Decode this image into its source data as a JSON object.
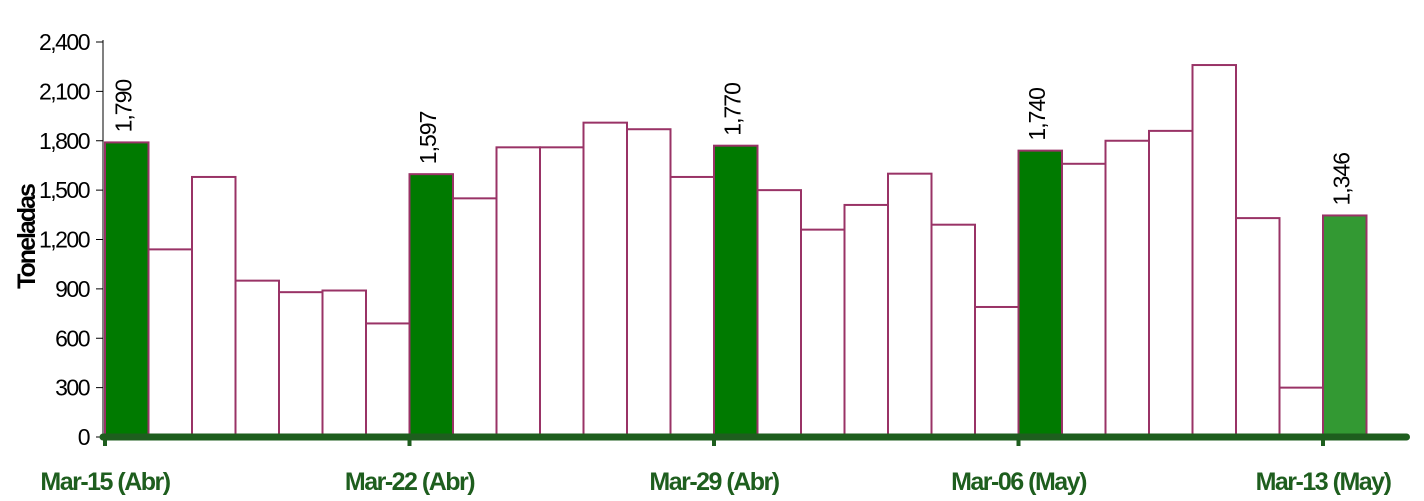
{
  "chart_data": {
    "type": "bar",
    "ylabel": "Toneladas",
    "ylim": [
      0,
      2400
    ],
    "yticks": [
      0,
      300,
      600,
      900,
      1200,
      1500,
      1800,
      2100,
      2400
    ],
    "ytick_labels": [
      "0",
      "300",
      "600",
      "900",
      "1,200",
      "1,500",
      "1,800",
      "2,100",
      "2,400"
    ],
    "x_labels": [
      {
        "index": 0,
        "label": "Mar-15 (Abr)"
      },
      {
        "index": 7,
        "label": "Mar-22 (Abr)"
      },
      {
        "index": 14,
        "label": "Mar-29 (Abr)"
      },
      {
        "index": 21,
        "label": "Mar-06 (May)"
      },
      {
        "index": 28,
        "label": "Mar-13 (May)"
      }
    ],
    "values": [
      1790,
      1140,
      1580,
      950,
      880,
      890,
      690,
      1597,
      1450,
      1760,
      1760,
      1910,
      1870,
      1580,
      1770,
      1500,
      1260,
      1410,
      1600,
      1290,
      790,
      1740,
      1660,
      1800,
      1860,
      2260,
      1330,
      300,
      1346
    ],
    "highlighted": [
      0,
      7,
      14,
      21,
      28
    ],
    "data_labels": [
      {
        "index": 0,
        "text": "1,790"
      },
      {
        "index": 7,
        "text": "1,597"
      },
      {
        "index": 14,
        "text": "1,770"
      },
      {
        "index": 21,
        "text": "1,740"
      },
      {
        "index": 28,
        "text": "1,346"
      }
    ],
    "colors": {
      "highlight": "#007a00",
      "highlight_last": "#339933",
      "bar_fill": "#ffffff",
      "bar_stroke": "#993366",
      "axis": "#1e5e1e",
      "x_label": "#1e5e1e"
    }
  }
}
